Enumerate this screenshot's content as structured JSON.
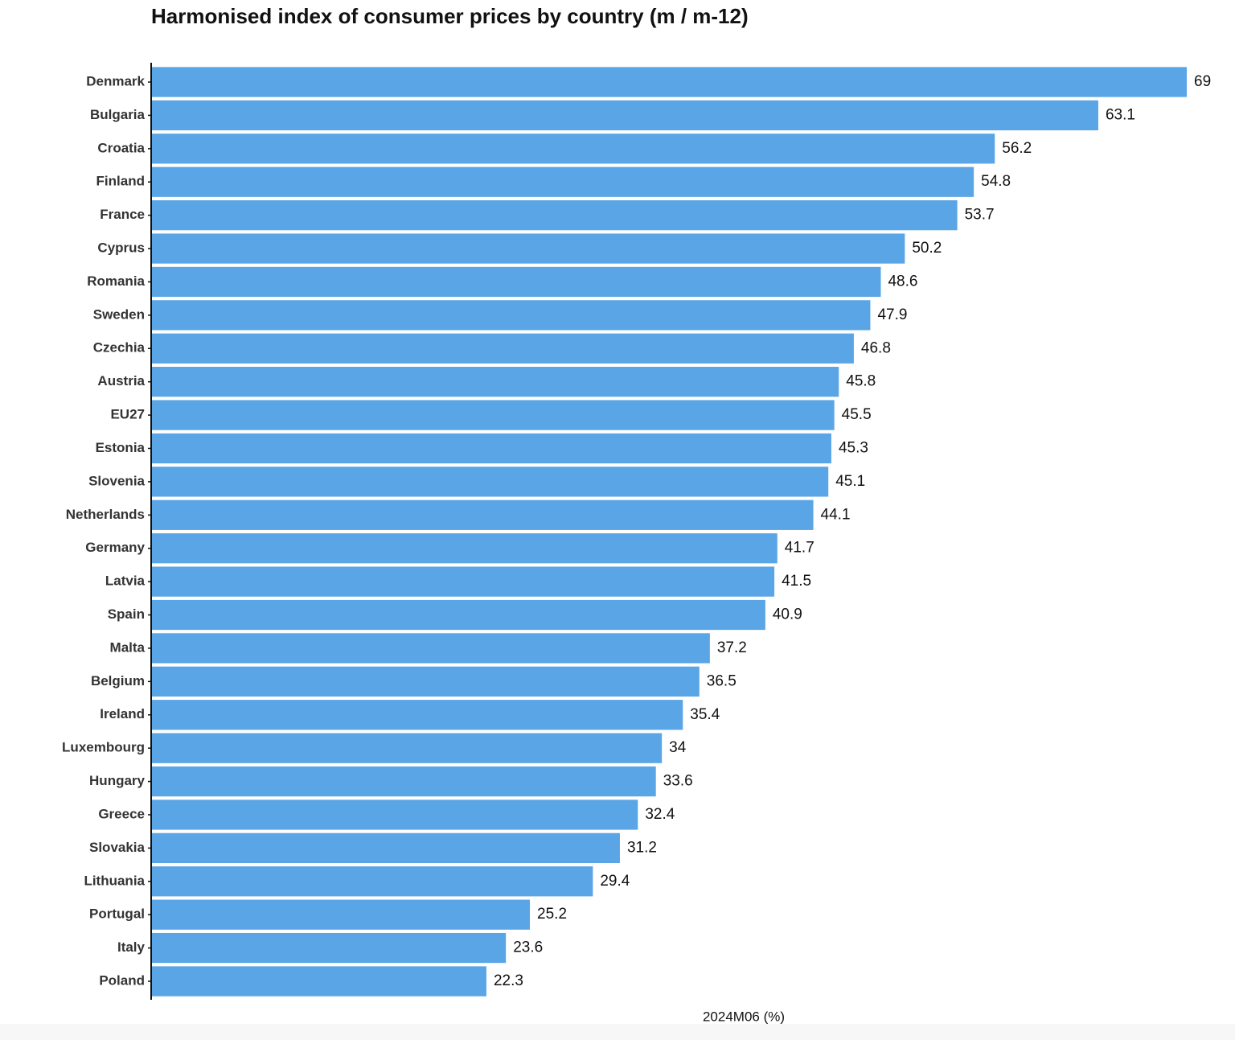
{
  "chart_data": {
    "type": "bar",
    "orientation": "horizontal",
    "title": "Harmonised index of consumer prices by country (m / m-12)",
    "x_label": "2024M06 (%)",
    "categories": [
      "Denmark",
      "Bulgaria",
      "Croatia",
      "Finland",
      "France",
      "Cyprus",
      "Romania",
      "Sweden",
      "Czechia",
      "Austria",
      "EU27",
      "Estonia",
      "Slovenia",
      "Netherlands",
      "Germany",
      "Latvia",
      "Spain",
      "Malta",
      "Belgium",
      "Ireland",
      "Luxembourg",
      "Hungary",
      "Greece",
      "Slovakia",
      "Lithuania",
      "Portugal",
      "Italy",
      "Poland"
    ],
    "values": [
      69,
      63.1,
      56.2,
      54.8,
      53.7,
      50.2,
      48.6,
      47.9,
      46.8,
      45.8,
      45.5,
      45.3,
      45.1,
      44.1,
      41.7,
      41.5,
      40.9,
      37.2,
      36.5,
      35.4,
      34,
      33.6,
      32.4,
      31.2,
      29.4,
      25.2,
      23.6,
      22.3
    ],
    "color": "#5aa5e6",
    "xlim": [
      0,
      69
    ]
  }
}
